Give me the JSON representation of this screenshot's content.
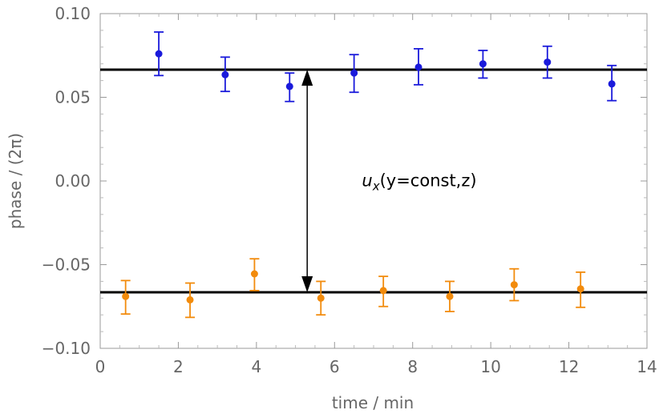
{
  "chart_data": {
    "type": "scatter",
    "xlabel": "time / min",
    "ylabel": "phase / (2π)",
    "xlim": [
      0,
      14
    ],
    "ylim": [
      -0.1,
      0.1
    ],
    "x_ticks": [
      0,
      2,
      4,
      6,
      8,
      10,
      12,
      14
    ],
    "x_tick_labels": [
      "0",
      "2",
      "4",
      "6",
      "8",
      "10",
      "12",
      "14"
    ],
    "y_ticks": [
      -0.1,
      -0.05,
      0.0,
      0.05,
      0.1
    ],
    "y_tick_labels": [
      "−0.10",
      "−0.05",
      "0.00",
      "0.05",
      "0.10"
    ],
    "grid": false,
    "series": [
      {
        "color": "#1a1adb",
        "x": [
          1.5,
          3.2,
          4.85,
          6.5,
          8.15,
          9.8,
          11.45,
          13.1
        ],
        "y": [
          0.076,
          0.0635,
          0.0565,
          0.0645,
          0.068,
          0.07,
          0.071,
          0.058
        ],
        "err_low": [
          0.063,
          0.0535,
          0.0475,
          0.053,
          0.0575,
          0.0615,
          0.0615,
          0.048
        ],
        "err_high": [
          0.089,
          0.074,
          0.0645,
          0.0755,
          0.079,
          0.078,
          0.0805,
          0.069
        ]
      },
      {
        "color": "#f28b0c",
        "x": [
          0.65,
          2.3,
          3.95,
          5.65,
          7.25,
          8.95,
          10.6,
          12.3
        ],
        "y": [
          -0.069,
          -0.071,
          -0.0555,
          -0.07,
          -0.0655,
          -0.069,
          -0.062,
          -0.0645
        ],
        "err_low": [
          -0.0795,
          -0.0815,
          -0.0655,
          -0.08,
          -0.075,
          -0.078,
          -0.0715,
          -0.0755
        ],
        "err_high": [
          -0.0595,
          -0.061,
          -0.0465,
          -0.06,
          -0.057,
          -0.06,
          -0.0525,
          -0.0545
        ]
      }
    ],
    "reference_lines": [
      {
        "y": 0.0665,
        "color": "#000000"
      },
      {
        "y": -0.0665,
        "color": "#000000"
      }
    ],
    "arrow": {
      "x": 5.3,
      "y_from": 0.0665,
      "y_to": -0.0665
    },
    "annotation": {
      "u": "u",
      "sub": "x",
      "rest": "(y=const,z)",
      "x": 6.7,
      "y": -0.003
    }
  }
}
